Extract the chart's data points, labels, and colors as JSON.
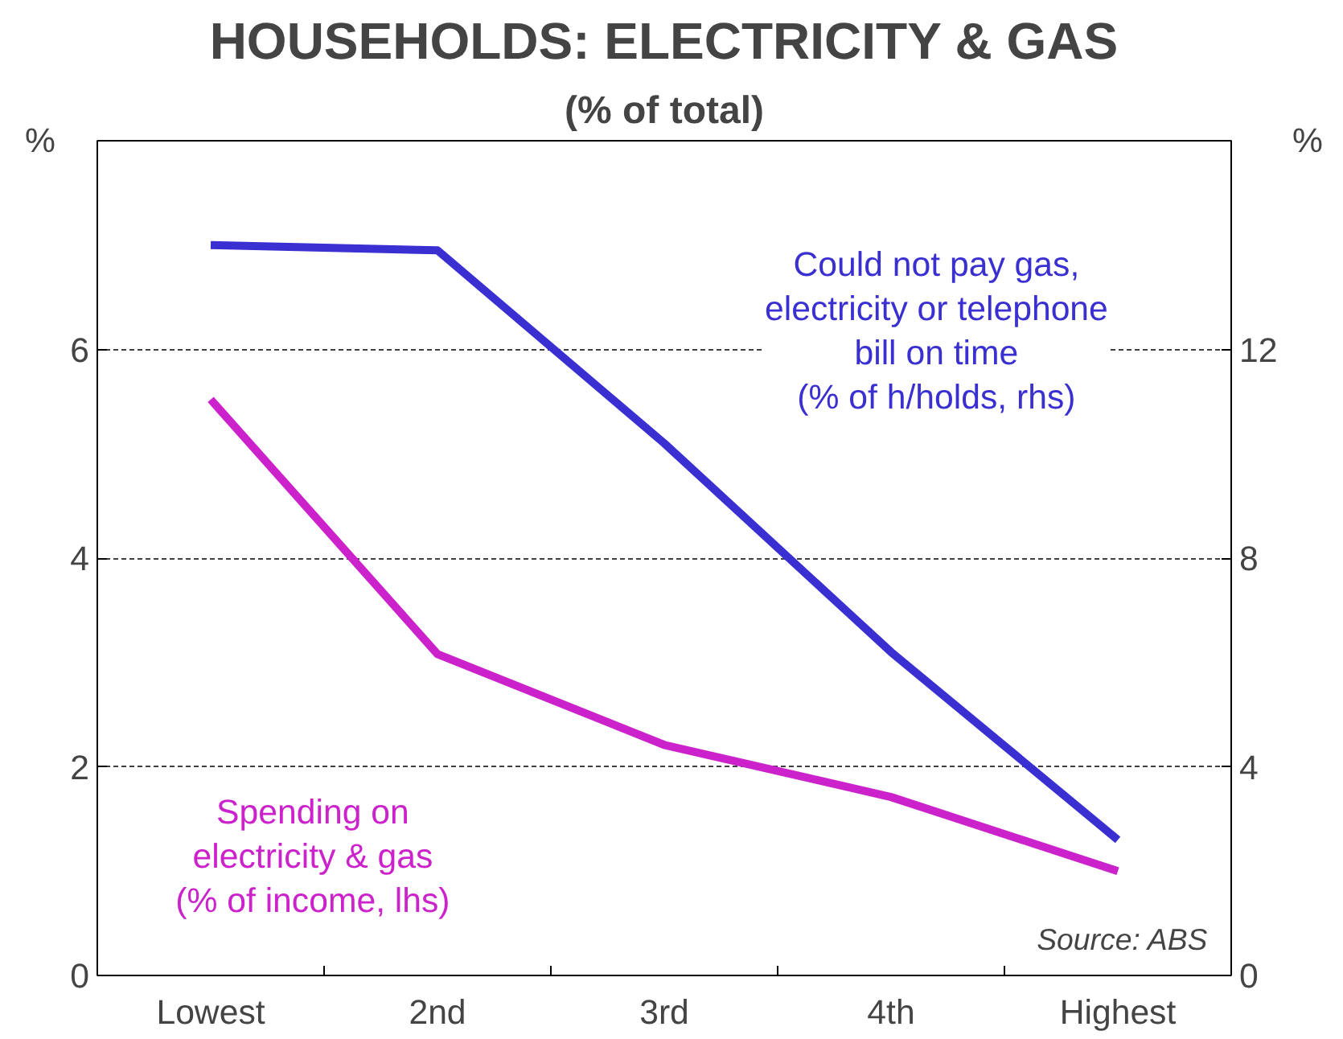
{
  "chart_data": {
    "type": "line",
    "title": "HOUSEHOLDS: ELECTRICITY & GAS",
    "subtitle": "(% of total)",
    "ylabel": "%",
    "y2label": "%",
    "categories": [
      "Lowest",
      "2nd",
      "3rd",
      "4th",
      "Highest"
    ],
    "series": [
      {
        "name": "Could not pay gas,\nelectricity or telephone\nbill on time\n(% of h/holds, rhs)",
        "color": "#3a2fd0",
        "axis": "y2",
        "values": [
          14.0,
          13.9,
          10.2,
          6.2,
          2.6
        ]
      },
      {
        "name": "Spending on\nelectricity & gas\n(% of income, lhs)",
        "color": "#cc22cc",
        "values": [
          5.52,
          3.08,
          2.21,
          1.71,
          1.0
        ]
      }
    ],
    "ylim": [
      0,
      8
    ],
    "yticks": [
      0,
      2,
      4,
      6
    ],
    "y2lim": [
      0,
      16
    ],
    "y2ticks": [
      0,
      4,
      8,
      12
    ],
    "grid": "y",
    "marker": "none",
    "line_style": "solid",
    "annotations": [
      "Source: ABS"
    ]
  }
}
